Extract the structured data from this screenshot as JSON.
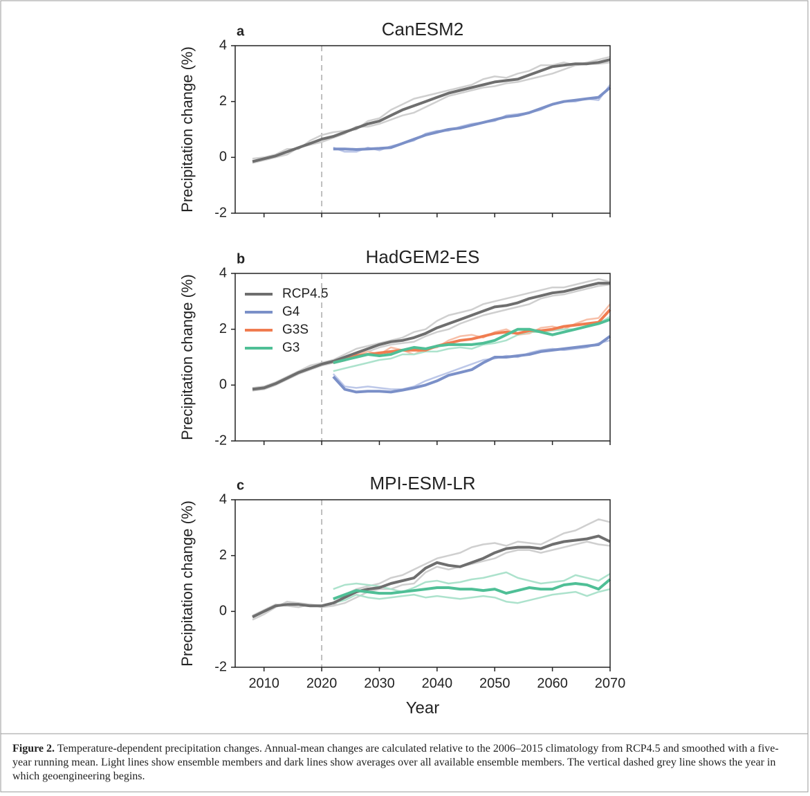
{
  "chart_data": [
    {
      "type": "line",
      "panel_label": "a",
      "title": "CanESM2",
      "ylabel": "Precipitation change (%)",
      "x": [
        2008,
        2010,
        2012,
        2014,
        2016,
        2018,
        2020,
        2022,
        2024,
        2026,
        2028,
        2030,
        2032,
        2034,
        2036,
        2038,
        2040,
        2042,
        2044,
        2046,
        2048,
        2050,
        2052,
        2054,
        2056,
        2058,
        2060,
        2062,
        2064,
        2066,
        2068,
        2070
      ],
      "xlim": [
        2005,
        2070
      ],
      "xticks": [
        2010,
        2020,
        2030,
        2040,
        2050,
        2060,
        2070
      ],
      "ylim": [
        -2,
        4
      ],
      "yticks": [
        -2,
        0,
        2,
        4
      ],
      "vline": 2020,
      "series": [
        {
          "name": "RCP4.5",
          "color": "#6e6e6e",
          "member_color": "#cfcfcf",
          "values": [
            -0.15,
            -0.05,
            0.05,
            0.2,
            0.35,
            0.5,
            0.65,
            0.75,
            0.9,
            1.05,
            1.2,
            1.3,
            1.5,
            1.7,
            1.85,
            2.0,
            2.15,
            2.3,
            2.4,
            2.5,
            2.6,
            2.7,
            2.75,
            2.8,
            2.95,
            3.1,
            3.25,
            3.3,
            3.35,
            3.35,
            3.4,
            3.5
          ],
          "members": [
            [
              -0.05,
              0.0,
              0.1,
              0.3,
              0.3,
              0.6,
              0.8,
              0.9,
              0.95,
              1.0,
              1.3,
              1.4,
              1.7,
              1.9,
              2.1,
              2.2,
              2.3,
              2.4,
              2.5,
              2.6,
              2.8,
              2.9,
              2.85,
              3.0,
              3.1,
              3.3,
              3.3,
              3.4,
              3.3,
              3.4,
              3.5,
              3.6
            ],
            [
              -0.2,
              -0.1,
              0.0,
              0.1,
              0.35,
              0.45,
              0.55,
              0.7,
              0.85,
              1.1,
              1.1,
              1.2,
              1.35,
              1.5,
              1.6,
              1.8,
              2.0,
              2.2,
              2.3,
              2.4,
              2.5,
              2.55,
              2.65,
              2.7,
              2.8,
              2.9,
              3.0,
              3.15,
              3.3,
              3.35,
              3.35,
              3.4
            ]
          ]
        },
        {
          "name": "G4",
          "color": "#7b90c8",
          "member_color": "#bcc7e8",
          "values": [
            null,
            null,
            null,
            null,
            null,
            null,
            null,
            0.3,
            0.3,
            0.28,
            0.3,
            0.32,
            0.35,
            0.5,
            0.65,
            0.8,
            0.9,
            1.0,
            1.05,
            1.15,
            1.25,
            1.35,
            1.45,
            1.5,
            1.6,
            1.75,
            1.9,
            2.0,
            2.05,
            2.1,
            2.15,
            2.5
          ],
          "members": [
            [
              null,
              null,
              null,
              null,
              null,
              null,
              null,
              0.35,
              0.2,
              0.2,
              0.35,
              0.25,
              0.4,
              0.5,
              0.6,
              0.85,
              0.95,
              0.95,
              1.1,
              1.2,
              1.25,
              1.3,
              1.5,
              1.55,
              1.6,
              1.7,
              1.9,
              2.0,
              2.0,
              2.1,
              2.05,
              2.6
            ]
          ]
        }
      ]
    },
    {
      "type": "line",
      "panel_label": "b",
      "title": "HadGEM2-ES",
      "ylabel": "Precipitation change (%)",
      "legend": "upper left",
      "x": [
        2008,
        2010,
        2012,
        2014,
        2016,
        2018,
        2020,
        2022,
        2024,
        2026,
        2028,
        2030,
        2032,
        2034,
        2036,
        2038,
        2040,
        2042,
        2044,
        2046,
        2048,
        2050,
        2052,
        2054,
        2056,
        2058,
        2060,
        2062,
        2064,
        2066,
        2068,
        2070
      ],
      "xlim": [
        2005,
        2070
      ],
      "xticks": [
        2010,
        2020,
        2030,
        2040,
        2050,
        2060,
        2070
      ],
      "ylim": [
        -2,
        4
      ],
      "yticks": [
        -2,
        0,
        2,
        4
      ],
      "vline": 2020,
      "series": [
        {
          "name": "RCP4.5",
          "color": "#6e6e6e",
          "member_color": "#cfcfcf",
          "values": [
            -0.15,
            -0.1,
            0.05,
            0.25,
            0.45,
            0.6,
            0.75,
            0.85,
            1.0,
            1.15,
            1.3,
            1.45,
            1.55,
            1.6,
            1.7,
            1.85,
            2.05,
            2.2,
            2.35,
            2.5,
            2.65,
            2.8,
            2.85,
            2.95,
            3.1,
            3.2,
            3.3,
            3.35,
            3.45,
            3.55,
            3.65,
            3.65
          ],
          "members": [
            [
              -0.1,
              -0.05,
              0.1,
              0.3,
              0.5,
              0.7,
              0.8,
              0.9,
              1.1,
              1.3,
              1.4,
              1.5,
              1.6,
              1.7,
              1.9,
              2.0,
              2.3,
              2.5,
              2.6,
              2.7,
              2.9,
              3.0,
              3.1,
              3.2,
              3.3,
              3.4,
              3.5,
              3.5,
              3.6,
              3.7,
              3.8,
              3.7
            ],
            [
              -0.2,
              -0.15,
              0.0,
              0.2,
              0.4,
              0.55,
              0.7,
              0.8,
              0.95,
              1.05,
              1.2,
              1.35,
              1.45,
              1.5,
              1.55,
              1.75,
              1.9,
              2.0,
              2.2,
              2.35,
              2.5,
              2.6,
              2.7,
              2.8,
              2.9,
              3.1,
              3.2,
              3.25,
              3.35,
              3.45,
              3.55,
              3.6
            ]
          ]
        },
        {
          "name": "G4",
          "color": "#7b90c8",
          "member_color": "#bcc7e8",
          "values": [
            null,
            null,
            null,
            null,
            null,
            null,
            null,
            0.3,
            -0.15,
            -0.25,
            -0.22,
            -0.22,
            -0.25,
            -0.18,
            -0.1,
            0.0,
            0.15,
            0.35,
            0.45,
            0.55,
            0.8,
            1.0,
            1.0,
            1.05,
            1.1,
            1.2,
            1.25,
            1.3,
            1.35,
            1.4,
            1.45,
            1.75
          ],
          "members": [
            [
              null,
              null,
              null,
              null,
              null,
              null,
              null,
              0.4,
              -0.05,
              -0.1,
              -0.05,
              -0.1,
              -0.15,
              -0.15,
              -0.05,
              0.15,
              0.3,
              0.45,
              0.6,
              0.75,
              0.9,
              0.95,
              1.05,
              1.0,
              1.15,
              1.25,
              1.3,
              1.25,
              1.3,
              1.35,
              1.5,
              1.6
            ]
          ]
        },
        {
          "name": "G3S",
          "color": "#f07c50",
          "member_color": "#f7bfa8",
          "values": [
            null,
            null,
            null,
            null,
            null,
            null,
            null,
            0.8,
            0.9,
            1.05,
            1.1,
            1.15,
            1.2,
            1.25,
            1.25,
            1.25,
            1.4,
            1.5,
            1.6,
            1.65,
            1.75,
            1.85,
            1.9,
            1.85,
            1.95,
            1.95,
            2.0,
            2.1,
            2.15,
            2.2,
            2.25,
            2.7
          ],
          "members": [
            [
              null,
              null,
              null,
              null,
              null,
              null,
              null,
              0.85,
              1.0,
              1.1,
              1.2,
              1.1,
              1.35,
              1.25,
              1.1,
              1.3,
              1.35,
              1.6,
              1.75,
              1.8,
              1.7,
              1.9,
              2.0,
              1.8,
              1.85,
              2.05,
              2.1,
              2.0,
              2.2,
              2.35,
              2.4,
              2.9
            ]
          ]
        },
        {
          "name": "G3",
          "color": "#4fbf96",
          "member_color": "#ace2cc",
          "values": [
            null,
            null,
            null,
            null,
            null,
            null,
            null,
            0.8,
            0.9,
            1.0,
            1.1,
            1.05,
            1.1,
            1.25,
            1.35,
            1.3,
            1.4,
            1.45,
            1.45,
            1.45,
            1.5,
            1.6,
            1.8,
            2.0,
            2.0,
            1.9,
            1.8,
            1.9,
            2.0,
            2.1,
            2.2,
            2.35
          ],
          "members": [
            [
              null,
              null,
              null,
              null,
              null,
              null,
              null,
              0.5,
              0.6,
              0.7,
              0.8,
              0.9,
              0.95,
              1.1,
              1.1,
              1.2,
              1.2,
              1.3,
              1.35,
              1.3,
              1.45,
              1.5,
              1.6,
              1.8,
              1.9,
              1.9,
              1.95,
              2.0,
              2.0,
              2.1,
              2.2,
              2.45
            ]
          ]
        }
      ]
    },
    {
      "type": "line",
      "panel_label": "c",
      "title": "MPI-ESM-LR",
      "ylabel": "Precipitation change (%)",
      "xlabel": "Year",
      "show_xtick_labels": true,
      "x": [
        2008,
        2010,
        2012,
        2014,
        2016,
        2018,
        2020,
        2022,
        2024,
        2026,
        2028,
        2030,
        2032,
        2034,
        2036,
        2038,
        2040,
        2042,
        2044,
        2046,
        2048,
        2050,
        2052,
        2054,
        2056,
        2058,
        2060,
        2062,
        2064,
        2066,
        2068,
        2070
      ],
      "xlim": [
        2005,
        2070
      ],
      "xticks": [
        2010,
        2020,
        2030,
        2040,
        2050,
        2060,
        2070
      ],
      "ylim": [
        -2,
        4
      ],
      "yticks": [
        -2,
        0,
        2,
        4
      ],
      "vline": 2020,
      "series": [
        {
          "name": "RCP4.5",
          "color": "#6e6e6e",
          "member_color": "#cfcfcf",
          "values": [
            -0.2,
            0.0,
            0.2,
            0.25,
            0.25,
            0.2,
            0.2,
            0.3,
            0.5,
            0.7,
            0.8,
            0.85,
            1.0,
            1.1,
            1.2,
            1.55,
            1.75,
            1.65,
            1.6,
            1.75,
            1.9,
            2.1,
            2.25,
            2.3,
            2.3,
            2.25,
            2.4,
            2.5,
            2.55,
            2.6,
            2.7,
            2.5
          ],
          "members": [
            [
              -0.3,
              -0.1,
              0.15,
              0.35,
              0.3,
              0.25,
              0.15,
              0.2,
              0.6,
              0.8,
              0.9,
              1.0,
              1.2,
              1.3,
              1.5,
              1.7,
              1.9,
              2.0,
              2.1,
              2.3,
              2.4,
              2.45,
              2.35,
              2.5,
              2.45,
              2.4,
              2.6,
              2.8,
              2.9,
              3.1,
              3.3,
              3.2
            ],
            [
              -0.15,
              0.05,
              0.25,
              0.2,
              0.15,
              0.25,
              0.2,
              0.2,
              0.3,
              0.5,
              0.7,
              0.8,
              0.8,
              0.95,
              1.0,
              1.4,
              1.6,
              1.5,
              1.6,
              1.7,
              1.8,
              1.9,
              2.1,
              2.2,
              2.2,
              2.1,
              2.2,
              2.3,
              2.4,
              2.5,
              2.4,
              2.35
            ]
          ]
        },
        {
          "name": "G3",
          "color": "#4fbf96",
          "member_color": "#ace2cc",
          "values": [
            null,
            null,
            null,
            null,
            null,
            null,
            null,
            0.45,
            0.6,
            0.75,
            0.7,
            0.65,
            0.65,
            0.7,
            0.75,
            0.8,
            0.85,
            0.85,
            0.8,
            0.8,
            0.75,
            0.8,
            0.65,
            0.75,
            0.85,
            0.8,
            0.8,
            0.95,
            1.0,
            0.95,
            0.8,
            1.15
          ],
          "members": [
            [
              null,
              null,
              null,
              null,
              null,
              null,
              null,
              0.8,
              0.95,
              1.0,
              0.95,
              0.9,
              0.8,
              0.7,
              0.85,
              1.05,
              1.1,
              1.0,
              1.05,
              1.15,
              1.2,
              1.3,
              1.4,
              1.2,
              1.1,
              1.0,
              1.05,
              1.1,
              1.3,
              1.2,
              1.1,
              1.35
            ],
            [
              null,
              null,
              null,
              null,
              null,
              null,
              null,
              0.3,
              0.4,
              0.6,
              0.5,
              0.45,
              0.5,
              0.55,
              0.6,
              0.5,
              0.55,
              0.5,
              0.45,
              0.5,
              0.55,
              0.5,
              0.35,
              0.3,
              0.4,
              0.5,
              0.6,
              0.65,
              0.7,
              0.55,
              0.7,
              0.8
            ]
          ]
        }
      ]
    }
  ],
  "figure_caption": {
    "label": "Figure 2.",
    "text": "Temperature-dependent precipitation changes. Annual-mean changes are calculated relative to the 2006–2015 climatology from RCP4.5 and smoothed with a five-year running mean. Light lines show ensemble members and dark lines show averages over all available ensemble members. The vertical dashed grey line shows the year in which geoengineering begins."
  }
}
